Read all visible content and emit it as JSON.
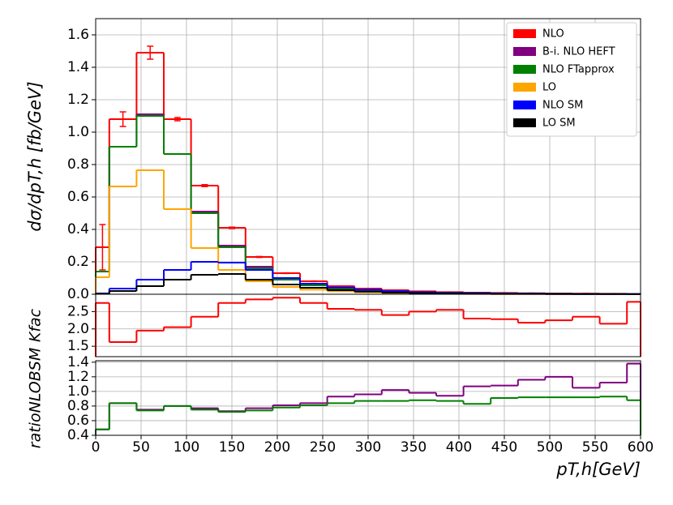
{
  "chart_data": [
    {
      "type": "histogram",
      "ylabel": "dσ/dpT,h [fb/GeV]",
      "bins": [
        0,
        15,
        45,
        75,
        105,
        135,
        165,
        195,
        225,
        255,
        285,
        315,
        345,
        375,
        405,
        435,
        465,
        495,
        525,
        555,
        585,
        600
      ],
      "xlim": [
        0,
        600
      ],
      "ylim": [
        0,
        1.7
      ],
      "yticks": [
        {
          "value": 0,
          "label": "0.0"
        },
        0.2,
        0.4,
        0.6,
        0.8,
        {
          "value": 1,
          "label": "1.0"
        },
        1.2,
        1.4,
        1.6
      ],
      "grid": true,
      "legend": "upper right",
      "series": [
        {
          "name": "NLO",
          "color": "#ff0000",
          "values": [
            0.29,
            1.08,
            1.49,
            1.08,
            0.67,
            0.41,
            0.23,
            0.13,
            0.08,
            0.05,
            0.035,
            0.025,
            0.018,
            0.013,
            0.01,
            0.008,
            0.006,
            0.005,
            0.004,
            0.003,
            0.002
          ],
          "errors": [
            0.14,
            0.045,
            0.04,
            0.01,
            0.006,
            0.004,
            0.003,
            0.002,
            0.002,
            0.001,
            0.001,
            0.001,
            0.001,
            0.001,
            0.001,
            0.001,
            0.001,
            0.001,
            0.001,
            0.001,
            0.001
          ]
        },
        {
          "name": "B-i. NLO HEFT",
          "color": "#800080",
          "values": [
            0.14,
            0.91,
            1.11,
            0.865,
            0.51,
            0.3,
            0.17,
            0.1,
            0.06,
            0.04,
            0.028,
            0.02,
            0.014,
            0.01,
            0.008,
            0.006,
            0.005,
            0.004,
            0.003,
            0.002,
            0.002
          ]
        },
        {
          "name": "NLO FTapprox",
          "color": "#008000",
          "values": [
            0.14,
            0.91,
            1.1,
            0.865,
            0.5,
            0.29,
            0.16,
            0.09,
            0.055,
            0.035,
            0.025,
            0.017,
            0.012,
            0.009,
            0.007,
            0.005,
            0.004,
            0.003,
            0.002,
            0.002,
            0.001
          ]
        },
        {
          "name": "LO",
          "color": "#ffa500",
          "values": [
            0.105,
            0.665,
            0.765,
            0.525,
            0.285,
            0.15,
            0.08,
            0.045,
            0.028,
            0.018,
            0.012,
            0.008,
            0.006,
            0.004,
            0.003,
            0.002,
            0.002,
            0.001,
            0.001,
            0.001,
            0.001
          ]
        },
        {
          "name": "NLO SM",
          "color": "#0000ff",
          "values": [
            0.005,
            0.035,
            0.09,
            0.15,
            0.2,
            0.195,
            0.15,
            0.1,
            0.065,
            0.042,
            0.028,
            0.018,
            0.012,
            0.008,
            0.006,
            0.004,
            0.003,
            0.002,
            0.0015,
            0.001,
            0.001
          ]
        },
        {
          "name": "LO SM",
          "color": "#000000",
          "values": [
            0.003,
            0.02,
            0.05,
            0.09,
            0.12,
            0.125,
            0.09,
            0.06,
            0.04,
            0.025,
            0.016,
            0.01,
            0.007,
            0.005,
            0.003,
            0.002,
            0.002,
            0.001,
            0.001,
            0.001,
            0.0005
          ]
        }
      ]
    },
    {
      "type": "histogram",
      "ylabel": "Kfac",
      "bins": [
        0,
        15,
        45,
        75,
        105,
        135,
        165,
        195,
        225,
        255,
        285,
        315,
        345,
        375,
        405,
        435,
        465,
        495,
        525,
        555,
        585,
        600
      ],
      "xlim": [
        0,
        600
      ],
      "ylim": [
        1.2,
        3.0
      ],
      "yticks": [
        1.5,
        {
          "value": 2,
          "label": "2.0"
        },
        2.5
      ],
      "grid": true,
      "series": [
        {
          "color": "#ff0000",
          "values": [
            2.75,
            1.62,
            1.95,
            2.05,
            2.35,
            2.75,
            2.85,
            2.9,
            2.75,
            2.58,
            2.55,
            2.4,
            2.5,
            2.55,
            2.3,
            2.28,
            2.18,
            2.25,
            2.35,
            2.15,
            2.78
          ]
        }
      ]
    },
    {
      "type": "histogram",
      "ylabel": "ratioNLOBSM",
      "xlabel": "pT,h[GeV]",
      "bins": [
        0,
        15,
        45,
        75,
        105,
        135,
        165,
        195,
        225,
        255,
        285,
        315,
        345,
        375,
        405,
        435,
        465,
        495,
        525,
        555,
        585,
        600
      ],
      "xlim": [
        0,
        600
      ],
      "ylim": [
        0.4,
        1.42
      ],
      "yticks": [
        0.4,
        0.6,
        0.8,
        {
          "value": 1,
          "label": "1.0"
        },
        1.2,
        1.4
      ],
      "xticks": [
        0,
        50,
        100,
        150,
        200,
        250,
        300,
        350,
        400,
        450,
        500,
        550,
        600
      ],
      "grid": true,
      "series": [
        {
          "color": "#800080",
          "values": [
            0.48,
            0.84,
            0.75,
            0.8,
            0.77,
            0.73,
            0.77,
            0.81,
            0.84,
            0.93,
            0.96,
            1.02,
            0.98,
            0.94,
            1.07,
            1.08,
            1.16,
            1.2,
            1.05,
            1.12,
            1.38
          ]
        },
        {
          "color": "#008000",
          "values": [
            0.48,
            0.84,
            0.74,
            0.8,
            0.75,
            0.72,
            0.74,
            0.78,
            0.81,
            0.84,
            0.87,
            0.87,
            0.88,
            0.87,
            0.83,
            0.91,
            0.92,
            0.92,
            0.92,
            0.93,
            0.88
          ]
        }
      ]
    }
  ]
}
